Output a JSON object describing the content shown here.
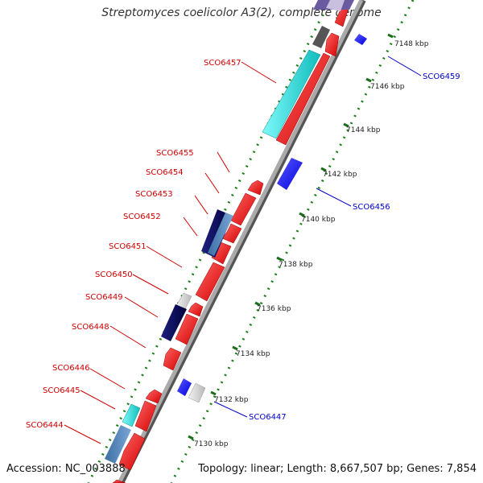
{
  "title": "Streptomyces coelicolor A3(2), complete genome",
  "footer": {
    "accession": "Accession: NC_003888",
    "summary": "Topology: linear; Length: 8,667,507 bp; Genes: 7,854"
  },
  "kbp_ticks": [
    "7130 kbp",
    "7132 kbp",
    "7134 kbp",
    "7136 kbp",
    "7138 kbp",
    "7140 kbp",
    "7142 kbp",
    "7144 kbp",
    "7146 kbp",
    "7148 kbp"
  ],
  "gene_labels_red": [
    "SCO6457",
    "SCO6455",
    "SCO6454",
    "SCO6453",
    "SCO6452",
    "SCO6451",
    "SCO6450",
    "SCO6449",
    "SCO6448",
    "SCO6446",
    "SCO6445",
    "SCO6444"
  ],
  "gene_labels_blue": [
    "SCO6459",
    "SCO6456",
    "SCO6447"
  ],
  "colors": {
    "label_red": "#d00000",
    "label_blue": "#0000cc",
    "gene_red": "#ff1a1a",
    "gene_blue": "#1a1aff",
    "cyan": "#22cccc",
    "navy": "#00005f",
    "tick_green": "#1a7f1a",
    "axis_gray": "#888888"
  }
}
